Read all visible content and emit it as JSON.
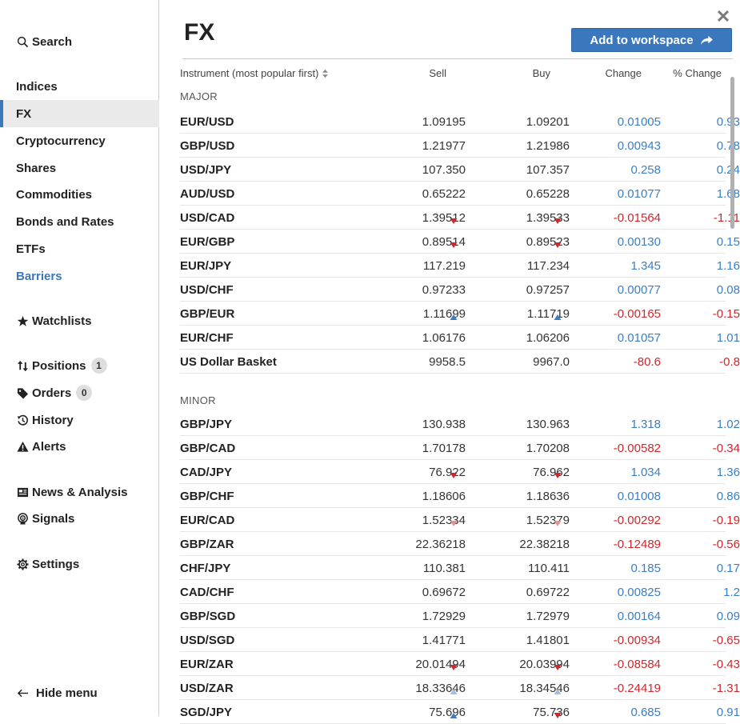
{
  "sidebar": {
    "search": "Search",
    "markets": [
      {
        "label": "Indices"
      },
      {
        "label": "FX"
      },
      {
        "label": "Cryptocurrency"
      },
      {
        "label": "Shares"
      },
      {
        "label": "Commodities"
      },
      {
        "label": "Bonds and Rates"
      },
      {
        "label": "ETFs"
      },
      {
        "label": "Barriers"
      }
    ],
    "watchlists": "Watchlists",
    "positions": "Positions",
    "positions_count": "1",
    "orders": "Orders",
    "orders_count": "0",
    "history": "History",
    "alerts": "Alerts",
    "news": "News & Analysis",
    "signals": "Signals",
    "settings": "Settings",
    "hide_menu": "Hide menu"
  },
  "main": {
    "title": "FX",
    "add_button": "Add to workspace",
    "columns": {
      "instrument": "Instrument (most popular first)",
      "sell": "Sell",
      "buy": "Buy",
      "change": "Change",
      "pct_change": "% Change"
    },
    "sections": [
      {
        "label": "MAJOR",
        "rows": [
          {
            "name": "EUR/USD",
            "sell": "1.09195",
            "buy": "1.09201",
            "change": "0.01005",
            "pct": "0.93",
            "arrow": ""
          },
          {
            "name": "GBP/USD",
            "sell": "1.21977",
            "buy": "1.21986",
            "change": "0.00943",
            "pct": "0.78",
            "arrow": ""
          },
          {
            "name": "USD/JPY",
            "sell": "107.350",
            "buy": "107.357",
            "change": "0.258",
            "pct": "0.24",
            "arrow": ""
          },
          {
            "name": "AUD/USD",
            "sell": "0.65222",
            "buy": "0.65228",
            "change": "0.01077",
            "pct": "1.68",
            "arrow": ""
          },
          {
            "name": "USD/CAD",
            "sell": "1.39512",
            "buy": "1.39533",
            "change": "-0.01564",
            "pct": "-1.11",
            "arrow": "down"
          },
          {
            "name": "EUR/GBP",
            "sell": "0.89514",
            "buy": "0.89523",
            "change": "0.00130",
            "pct": "0.15",
            "arrow": "down"
          },
          {
            "name": "EUR/JPY",
            "sell": "117.219",
            "buy": "117.234",
            "change": "1.345",
            "pct": "1.16",
            "arrow": ""
          },
          {
            "name": "USD/CHF",
            "sell": "0.97233",
            "buy": "0.97257",
            "change": "0.00077",
            "pct": "0.08",
            "arrow": ""
          },
          {
            "name": "GBP/EUR",
            "sell": "1.11699",
            "buy": "1.11719",
            "change": "-0.00165",
            "pct": "-0.15",
            "arrow": "up"
          },
          {
            "name": "EUR/CHF",
            "sell": "1.06176",
            "buy": "1.06206",
            "change": "0.01057",
            "pct": "1.01",
            "arrow": ""
          },
          {
            "name": "US Dollar Basket",
            "sell": "9958.5",
            "buy": "9967.0",
            "change": "-80.6",
            "pct": "-0.8",
            "arrow": ""
          }
        ]
      },
      {
        "label": "MINOR",
        "rows": [
          {
            "name": "GBP/JPY",
            "sell": "130.938",
            "buy": "130.963",
            "change": "1.318",
            "pct": "1.02",
            "arrow": ""
          },
          {
            "name": "GBP/CAD",
            "sell": "1.70178",
            "buy": "1.70208",
            "change": "-0.00582",
            "pct": "-0.34",
            "arrow": ""
          },
          {
            "name": "CAD/JPY",
            "sell": "76.922",
            "buy": "76.962",
            "change": "1.034",
            "pct": "1.36",
            "arrow": "down"
          },
          {
            "name": "GBP/CHF",
            "sell": "1.18606",
            "buy": "1.18636",
            "change": "0.01008",
            "pct": "0.86",
            "arrow": ""
          },
          {
            "name": "EUR/CAD",
            "sell": "1.52334",
            "buy": "1.52379",
            "change": "-0.00292",
            "pct": "-0.19",
            "arrow": "down-light"
          },
          {
            "name": "GBP/ZAR",
            "sell": "22.36218",
            "buy": "22.38218",
            "change": "-0.12489",
            "pct": "-0.56",
            "arrow": ""
          },
          {
            "name": "CHF/JPY",
            "sell": "110.381",
            "buy": "110.411",
            "change": "0.185",
            "pct": "0.17",
            "arrow": ""
          },
          {
            "name": "CAD/CHF",
            "sell": "0.69672",
            "buy": "0.69722",
            "change": "0.00825",
            "pct": "1.2",
            "arrow": ""
          },
          {
            "name": "GBP/SGD",
            "sell": "1.72929",
            "buy": "1.72979",
            "change": "0.00164",
            "pct": "0.09",
            "arrow": ""
          },
          {
            "name": "USD/SGD",
            "sell": "1.41771",
            "buy": "1.41801",
            "change": "-0.00934",
            "pct": "-0.65",
            "arrow": ""
          },
          {
            "name": "EUR/ZAR",
            "sell": "20.01494",
            "buy": "20.03994",
            "change": "-0.08584",
            "pct": "-0.43",
            "arrow": "down"
          },
          {
            "name": "USD/ZAR",
            "sell": "18.33646",
            "buy": "18.34546",
            "change": "-0.24419",
            "pct": "-1.31",
            "arrow": "up-light"
          },
          {
            "name": "SGD/JPY",
            "sell": "75.696",
            "buy": "75.736",
            "change": "0.685",
            "pct": "0.91",
            "arrow": "mixed"
          }
        ]
      }
    ]
  },
  "colors": {
    "accent": "#3a77bd",
    "positive": "#3a7fc4",
    "negative": "#d1262c",
    "arrow_down": "#d1262c",
    "arrow_down_light": "#e8908f",
    "arrow_up": "#3a7fc4",
    "arrow_up_light": "#9dbfe0"
  }
}
